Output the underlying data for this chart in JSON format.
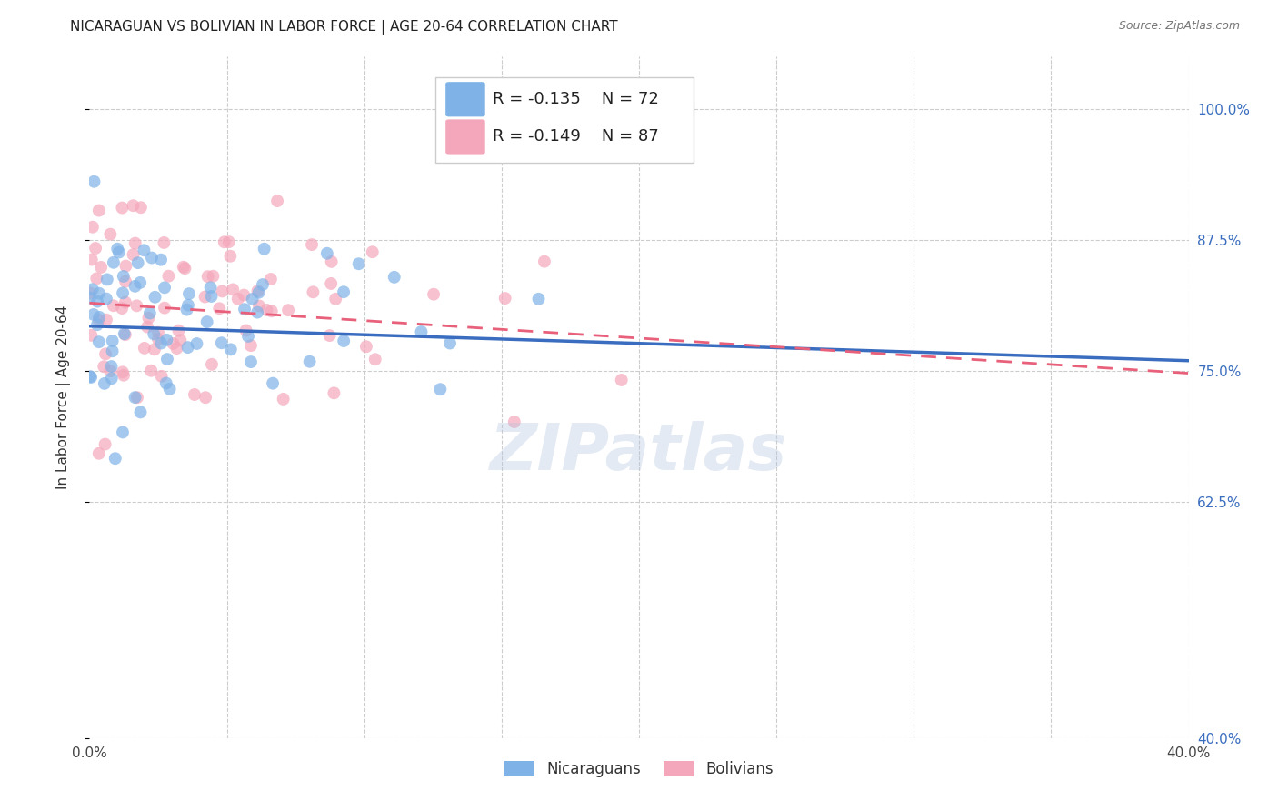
{
  "title": "NICARAGUAN VS BOLIVIAN IN LABOR FORCE | AGE 20-64 CORRELATION CHART",
  "source": "Source: ZipAtlas.com",
  "ylabel": "In Labor Force | Age 20-64",
  "xlim": [
    0.0,
    0.4
  ],
  "ylim": [
    0.4,
    1.05
  ],
  "yticks": [
    0.4,
    0.625,
    0.75,
    0.875,
    1.0
  ],
  "ytick_labels": [
    "40.0%",
    "62.5%",
    "75.0%",
    "87.5%",
    "100.0%"
  ],
  "xticks": [
    0.0,
    0.05,
    0.1,
    0.15,
    0.2,
    0.25,
    0.3,
    0.35,
    0.4
  ],
  "xtick_labels": [
    "0.0%",
    "",
    "",
    "",
    "",
    "",
    "",
    "",
    "40.0%"
  ],
  "nicaraguan_color": "#7fb3e8",
  "bolivian_color": "#f4a7bb",
  "nicaraguan_line_color": "#3a6dbf",
  "bolivian_line_color": "#e8607a",
  "legend_R_nicaraguan": "R = -0.135",
  "legend_N_nicaraguan": "N = 72",
  "legend_R_bolivian": "R = -0.149",
  "legend_N_bolivian": "N = 87",
  "watermark": "ZIPatlas",
  "title_fontsize": 11,
  "axis_label_fontsize": 11,
  "tick_fontsize": 11,
  "legend_fontsize": 13,
  "right_tick_color": "#3a6dbf",
  "background_color": "#ffffff",
  "grid_color": "#cccccc",
  "grid_linestyle": "--",
  "seed": 99,
  "nic_line_x0": 0.0,
  "nic_line_y0": 0.793,
  "nic_line_x1": 0.4,
  "nic_line_y1": 0.76,
  "bol_line_x0": 0.0,
  "bol_line_y0": 0.815,
  "bol_line_x1": 0.4,
  "bol_line_y1": 0.748
}
